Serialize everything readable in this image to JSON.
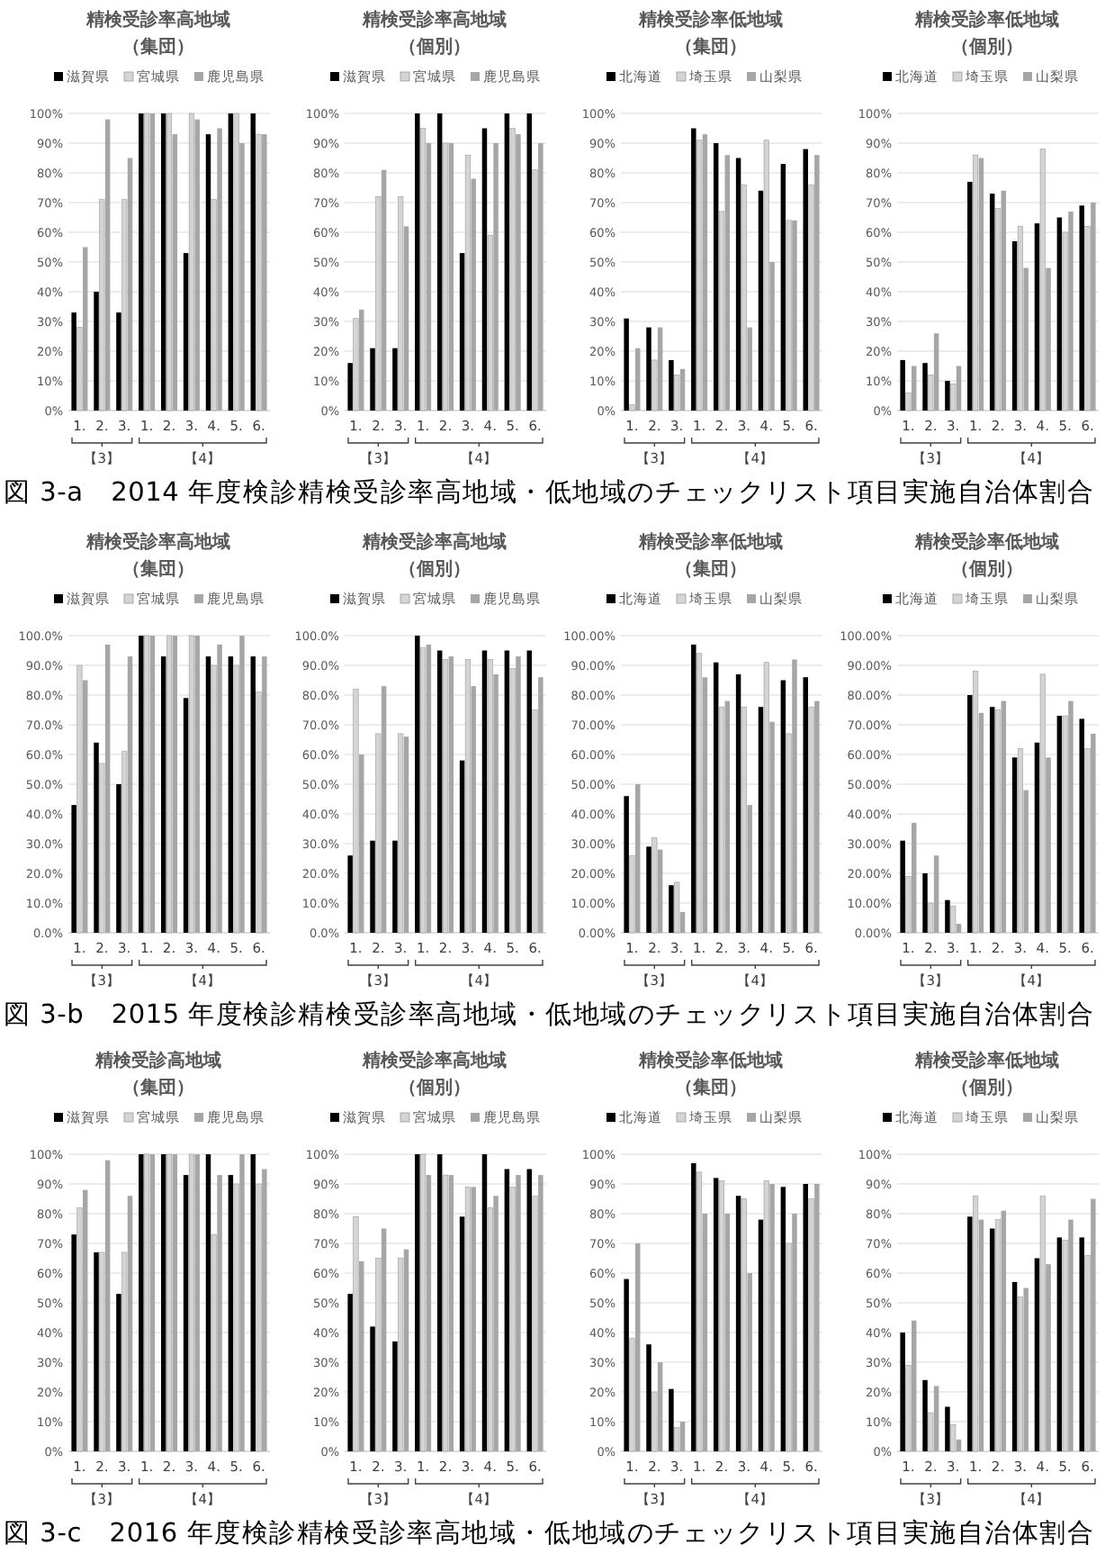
{
  "chart_data": [
    {
      "type": "bar",
      "title": "精検受診率高地域",
      "subtitle": "（集団）",
      "categories": [
        "1.",
        "2.",
        "3.",
        "1.",
        "2.",
        "3.",
        "4.",
        "5.",
        "6."
      ],
      "ylim": [
        0,
        100
      ],
      "yticks": [
        {
          "value": 0,
          "label": "0%"
        },
        {
          "value": 10,
          "label": "10%"
        },
        {
          "value": 20,
          "label": "20%"
        },
        {
          "value": 30,
          "label": "30%"
        },
        {
          "value": 40,
          "label": "40%"
        },
        {
          "value": 50,
          "label": "50%"
        },
        {
          "value": 60,
          "label": "60%"
        },
        {
          "value": 70,
          "label": "70%"
        },
        {
          "value": 80,
          "label": "80%"
        },
        {
          "value": 90,
          "label": "90%"
        },
        {
          "value": 100,
          "label": "100%"
        }
      ],
      "grid": "y",
      "legend": "top",
      "annotations": [
        "【3】",
        "【4】",
        "図 3-a　2014 年度検診精検受診率高地域・低地域のチェックリスト項目実施自治体割合"
      ],
      "series": [
        {
          "name": "滋賀県",
          "color": "#000000",
          "values": [
            33,
            40,
            33,
            100,
            100,
            53,
            93,
            100,
            100
          ]
        },
        {
          "name": "宮城県",
          "color": "#d4d4d4",
          "values": [
            28,
            71,
            71,
            100,
            100,
            100,
            71,
            100,
            93
          ]
        },
        {
          "name": "鹿児島県",
          "color": "#a6a6a6",
          "values": [
            55,
            98,
            85,
            100,
            93,
            98,
            95,
            90,
            93
          ]
        }
      ]
    },
    {
      "type": "bar",
      "title": "精検受診率高地域",
      "subtitle": "（個別）",
      "categories": [
        "1.",
        "2.",
        "3.",
        "1.",
        "2.",
        "3.",
        "4.",
        "5.",
        "6."
      ],
      "ylim": [
        0,
        100
      ],
      "yticks": [
        {
          "value": 0,
          "label": "0%"
        },
        {
          "value": 10,
          "label": "10%"
        },
        {
          "value": 20,
          "label": "20%"
        },
        {
          "value": 30,
          "label": "30%"
        },
        {
          "value": 40,
          "label": "40%"
        },
        {
          "value": 50,
          "label": "50%"
        },
        {
          "value": 60,
          "label": "60%"
        },
        {
          "value": 70,
          "label": "70%"
        },
        {
          "value": 80,
          "label": "80%"
        },
        {
          "value": 90,
          "label": "90%"
        },
        {
          "value": 100,
          "label": "100%"
        }
      ],
      "grid": "y",
      "legend": "top",
      "annotations": [
        "【3】",
        "【4】"
      ],
      "series": [
        {
          "name": "滋賀県",
          "color": "#000000",
          "values": [
            16,
            21,
            21,
            100,
            100,
            53,
            95,
            100,
            100
          ]
        },
        {
          "name": "宮城県",
          "color": "#d4d4d4",
          "values": [
            31,
            72,
            72,
            95,
            90,
            86,
            59,
            95,
            81
          ]
        },
        {
          "name": "鹿児島県",
          "color": "#a6a6a6",
          "values": [
            34,
            81,
            62,
            90,
            90,
            78,
            90,
            93,
            90
          ]
        }
      ]
    },
    {
      "type": "bar",
      "title": "精検受診率低地域",
      "subtitle": "（集団）",
      "categories": [
        "1.",
        "2.",
        "3.",
        "1.",
        "2.",
        "3.",
        "4.",
        "5.",
        "6."
      ],
      "ylim": [
        0,
        100
      ],
      "yticks": [
        {
          "value": 0,
          "label": "0%"
        },
        {
          "value": 10,
          "label": "10%"
        },
        {
          "value": 20,
          "label": "20%"
        },
        {
          "value": 30,
          "label": "30%"
        },
        {
          "value": 40,
          "label": "40%"
        },
        {
          "value": 50,
          "label": "50%"
        },
        {
          "value": 60,
          "label": "60%"
        },
        {
          "value": 70,
          "label": "70%"
        },
        {
          "value": 80,
          "label": "80%"
        },
        {
          "value": 90,
          "label": "90%"
        },
        {
          "value": 100,
          "label": "100%"
        }
      ],
      "grid": "y",
      "legend": "top",
      "annotations": [
        "【3】",
        "【4】"
      ],
      "series": [
        {
          "name": "北海道",
          "color": "#000000",
          "values": [
            31,
            28,
            17,
            95,
            90,
            85,
            74,
            83,
            88
          ]
        },
        {
          "name": "埼玉県",
          "color": "#d4d4d4",
          "values": [
            2,
            17,
            12,
            91,
            67,
            76,
            91,
            64,
            76
          ]
        },
        {
          "name": "山梨県",
          "color": "#a6a6a6",
          "values": [
            21,
            28,
            14,
            93,
            86,
            28,
            50,
            64,
            86
          ]
        }
      ]
    },
    {
      "type": "bar",
      "title": "精検受診率低地域",
      "subtitle": "（個別）",
      "categories": [
        "1.",
        "2.",
        "3.",
        "1.",
        "2.",
        "3.",
        "4.",
        "5.",
        "6."
      ],
      "ylim": [
        0,
        100
      ],
      "yticks": [
        {
          "value": 0,
          "label": "0%"
        },
        {
          "value": 10,
          "label": "10%"
        },
        {
          "value": 20,
          "label": "20%"
        },
        {
          "value": 30,
          "label": "30%"
        },
        {
          "value": 40,
          "label": "40%"
        },
        {
          "value": 50,
          "label": "50%"
        },
        {
          "value": 60,
          "label": "60%"
        },
        {
          "value": 70,
          "label": "70%"
        },
        {
          "value": 80,
          "label": "80%"
        },
        {
          "value": 90,
          "label": "90%"
        },
        {
          "value": 100,
          "label": "100%"
        }
      ],
      "grid": "y",
      "legend": "top",
      "annotations": [
        "【3】",
        "【4】"
      ],
      "series": [
        {
          "name": "北海道",
          "color": "#000000",
          "values": [
            17,
            16,
            10,
            77,
            73,
            57,
            63,
            65,
            69
          ]
        },
        {
          "name": "埼玉県",
          "color": "#d4d4d4",
          "values": [
            6,
            12,
            9,
            86,
            68,
            62,
            88,
            60,
            62
          ]
        },
        {
          "name": "山梨県",
          "color": "#a6a6a6",
          "values": [
            15,
            26,
            15,
            85,
            74,
            48,
            48,
            67,
            70
          ]
        }
      ]
    },
    {
      "type": "bar",
      "title": "精検受診率高地域",
      "subtitle": "（集団）",
      "categories": [
        "1.",
        "2.",
        "3.",
        "1.",
        "2.",
        "3.",
        "4.",
        "5.",
        "6."
      ],
      "ylim": [
        0,
        100
      ],
      "yticks": [
        {
          "value": 0,
          "label": "0.0%"
        },
        {
          "value": 10,
          "label": "10.0%"
        },
        {
          "value": 20,
          "label": "20.0%"
        },
        {
          "value": 30,
          "label": "30.0%"
        },
        {
          "value": 40,
          "label": "40.0%"
        },
        {
          "value": 50,
          "label": "50.0%"
        },
        {
          "value": 60,
          "label": "60.0%"
        },
        {
          "value": 70,
          "label": "70.0%"
        },
        {
          "value": 80,
          "label": "80.0%"
        },
        {
          "value": 90,
          "label": "90.0%"
        },
        {
          "value": 100,
          "label": "100.0%"
        }
      ],
      "grid": "y",
      "legend": "top",
      "annotations": [
        "【3】",
        "【4】",
        "図 3-b　2015 年度検診精検受診率高地域・低地域のチェックリスト項目実施自治体割合"
      ],
      "series": [
        {
          "name": "滋賀県",
          "color": "#000000",
          "values": [
            43,
            64,
            50,
            100,
            93,
            79,
            93,
            93,
            93
          ]
        },
        {
          "name": "宮城県",
          "color": "#d4d4d4",
          "values": [
            90,
            57,
            61,
            100,
            100,
            100,
            90,
            90,
            81
          ]
        },
        {
          "name": "鹿児島県",
          "color": "#a6a6a6",
          "values": [
            85,
            97,
            93,
            100,
            100,
            100,
            97,
            100,
            93
          ]
        }
      ]
    },
    {
      "type": "bar",
      "title": "精検受診率高地域",
      "subtitle": "（個別）",
      "categories": [
        "1.",
        "2.",
        "3.",
        "1.",
        "2.",
        "3.",
        "4.",
        "5.",
        "6."
      ],
      "ylim": [
        0,
        100
      ],
      "yticks": [
        {
          "value": 0,
          "label": "0.0%"
        },
        {
          "value": 10,
          "label": "10.0%"
        },
        {
          "value": 20,
          "label": "20.0%"
        },
        {
          "value": 30,
          "label": "30.0%"
        },
        {
          "value": 40,
          "label": "40.0%"
        },
        {
          "value": 50,
          "label": "50.0%"
        },
        {
          "value": 60,
          "label": "60.0%"
        },
        {
          "value": 70,
          "label": "70.0%"
        },
        {
          "value": 80,
          "label": "80.0%"
        },
        {
          "value": 90,
          "label": "90.0%"
        },
        {
          "value": 100,
          "label": "100.0%"
        }
      ],
      "grid": "y",
      "legend": "top",
      "annotations": [
        "【3】",
        "【4】"
      ],
      "series": [
        {
          "name": "滋賀県",
          "color": "#000000",
          "values": [
            26,
            31,
            31,
            100,
            95,
            58,
            95,
            95,
            95
          ]
        },
        {
          "name": "宮城県",
          "color": "#d4d4d4",
          "values": [
            82,
            67,
            67,
            96,
            92,
            92,
            92,
            89,
            75
          ]
        },
        {
          "name": "鹿児島県",
          "color": "#a6a6a6",
          "values": [
            60,
            83,
            66,
            97,
            93,
            83,
            87,
            93,
            86
          ]
        }
      ]
    },
    {
      "type": "bar",
      "title": "精検受診率低地域",
      "subtitle": "（集団）",
      "categories": [
        "1.",
        "2.",
        "3.",
        "1.",
        "2.",
        "3.",
        "4.",
        "5.",
        "6."
      ],
      "ylim": [
        0,
        100
      ],
      "yticks": [
        {
          "value": 0,
          "label": "0.00%"
        },
        {
          "value": 10,
          "label": "10.00%"
        },
        {
          "value": 20,
          "label": "20.00%"
        },
        {
          "value": 30,
          "label": "30.00%"
        },
        {
          "value": 40,
          "label": "40.00%"
        },
        {
          "value": 50,
          "label": "50.00%"
        },
        {
          "value": 60,
          "label": "60.00%"
        },
        {
          "value": 70,
          "label": "70.00%"
        },
        {
          "value": 80,
          "label": "80.00%"
        },
        {
          "value": 90,
          "label": "90.00%"
        },
        {
          "value": 100,
          "label": "100.00%"
        }
      ],
      "grid": "y",
      "legend": "top",
      "annotations": [
        "【3】",
        "【4】"
      ],
      "series": [
        {
          "name": "北海道",
          "color": "#000000",
          "values": [
            46,
            29,
            16,
            97,
            91,
            87,
            76,
            85,
            86
          ]
        },
        {
          "name": "埼玉県",
          "color": "#d4d4d4",
          "values": [
            26,
            32,
            17,
            94,
            76,
            76,
            91,
            67,
            76
          ]
        },
        {
          "name": "山梨県",
          "color": "#a6a6a6",
          "values": [
            50,
            28,
            7,
            86,
            78,
            43,
            71,
            92,
            78
          ]
        }
      ]
    },
    {
      "type": "bar",
      "title": "精検受診率低地域",
      "subtitle": "（個別）",
      "categories": [
        "1.",
        "2.",
        "3.",
        "1.",
        "2.",
        "3.",
        "4.",
        "5.",
        "6."
      ],
      "ylim": [
        0,
        100
      ],
      "yticks": [
        {
          "value": 0,
          "label": "0.00%"
        },
        {
          "value": 10,
          "label": "10.00%"
        },
        {
          "value": 20,
          "label": "20.00%"
        },
        {
          "value": 30,
          "label": "30.00%"
        },
        {
          "value": 40,
          "label": "40.00%"
        },
        {
          "value": 50,
          "label": "50.00%"
        },
        {
          "value": 60,
          "label": "60.00%"
        },
        {
          "value": 70,
          "label": "70.00%"
        },
        {
          "value": 80,
          "label": "80.00%"
        },
        {
          "value": 90,
          "label": "90.00%"
        },
        {
          "value": 100,
          "label": "100.00%"
        }
      ],
      "grid": "y",
      "legend": "top",
      "annotations": [
        "【3】",
        "【4】"
      ],
      "series": [
        {
          "name": "北海道",
          "color": "#000000",
          "values": [
            31,
            20,
            11,
            80,
            76,
            59,
            64,
            73,
            72
          ]
        },
        {
          "name": "埼玉県",
          "color": "#d4d4d4",
          "values": [
            19,
            10,
            9,
            88,
            75,
            62,
            87,
            73,
            62
          ]
        },
        {
          "name": "山梨県",
          "color": "#a6a6a6",
          "values": [
            37,
            26,
            3,
            74,
            78,
            48,
            59,
            78,
            67
          ]
        }
      ]
    },
    {
      "type": "bar",
      "title": "精検受診高地域",
      "subtitle": "（集団）",
      "categories": [
        "1.",
        "2.",
        "3.",
        "1.",
        "2.",
        "3.",
        "4.",
        "5.",
        "6."
      ],
      "ylim": [
        0,
        100
      ],
      "yticks": [
        {
          "value": 0,
          "label": "0%"
        },
        {
          "value": 10,
          "label": "10%"
        },
        {
          "value": 20,
          "label": "20%"
        },
        {
          "value": 30,
          "label": "30%"
        },
        {
          "value": 40,
          "label": "40%"
        },
        {
          "value": 50,
          "label": "50%"
        },
        {
          "value": 60,
          "label": "60%"
        },
        {
          "value": 70,
          "label": "70%"
        },
        {
          "value": 80,
          "label": "80%"
        },
        {
          "value": 90,
          "label": "90%"
        },
        {
          "value": 100,
          "label": "100%"
        }
      ],
      "grid": "y",
      "legend": "top",
      "annotations": [
        "【3】",
        "【4】",
        "図 3-c　2016 年度検診精検受診率高地域・低地域のチェックリスト項目実施自治体割合"
      ],
      "series": [
        {
          "name": "滋賀県",
          "color": "#000000",
          "values": [
            73,
            67,
            53,
            100,
            100,
            93,
            100,
            93,
            100
          ]
        },
        {
          "name": "宮城県",
          "color": "#d4d4d4",
          "values": [
            82,
            67,
            67,
            100,
            100,
            100,
            73,
            90,
            90
          ]
        },
        {
          "name": "鹿児島県",
          "color": "#a6a6a6",
          "values": [
            88,
            98,
            86,
            100,
            100,
            100,
            93,
            100,
            95
          ]
        }
      ]
    },
    {
      "type": "bar",
      "title": "精検受診率高地域",
      "subtitle": "（個別）",
      "categories": [
        "1.",
        "2.",
        "3.",
        "1.",
        "2.",
        "3.",
        "4.",
        "5.",
        "6."
      ],
      "ylim": [
        0,
        100
      ],
      "yticks": [
        {
          "value": 0,
          "label": "0%"
        },
        {
          "value": 10,
          "label": "10%"
        },
        {
          "value": 20,
          "label": "20%"
        },
        {
          "value": 30,
          "label": "30%"
        },
        {
          "value": 40,
          "label": "40%"
        },
        {
          "value": 50,
          "label": "50%"
        },
        {
          "value": 60,
          "label": "60%"
        },
        {
          "value": 70,
          "label": "70%"
        },
        {
          "value": 80,
          "label": "80%"
        },
        {
          "value": 90,
          "label": "90%"
        },
        {
          "value": 100,
          "label": "100%"
        }
      ],
      "grid": "y",
      "legend": "top",
      "annotations": [
        "【3】",
        "【4】"
      ],
      "series": [
        {
          "name": "滋賀県",
          "color": "#000000",
          "values": [
            53,
            42,
            37,
            100,
            100,
            79,
            100,
            95,
            95
          ]
        },
        {
          "name": "宮城県",
          "color": "#d4d4d4",
          "values": [
            79,
            65,
            65,
            100,
            93,
            89,
            82,
            89,
            86
          ]
        },
        {
          "name": "鹿児島県",
          "color": "#a6a6a6",
          "values": [
            64,
            75,
            68,
            93,
            93,
            89,
            86,
            93,
            93
          ]
        }
      ]
    },
    {
      "type": "bar",
      "title": "精検受診率低地域",
      "subtitle": "（集団）",
      "categories": [
        "1.",
        "2.",
        "3.",
        "1.",
        "2.",
        "3.",
        "4.",
        "5.",
        "6."
      ],
      "ylim": [
        0,
        100
      ],
      "yticks": [
        {
          "value": 0,
          "label": "0%"
        },
        {
          "value": 10,
          "label": "10%"
        },
        {
          "value": 20,
          "label": "20%"
        },
        {
          "value": 30,
          "label": "30%"
        },
        {
          "value": 40,
          "label": "40%"
        },
        {
          "value": 50,
          "label": "50%"
        },
        {
          "value": 60,
          "label": "60%"
        },
        {
          "value": 70,
          "label": "70%"
        },
        {
          "value": 80,
          "label": "80%"
        },
        {
          "value": 90,
          "label": "90%"
        },
        {
          "value": 100,
          "label": "100%"
        }
      ],
      "grid": "y",
      "legend": "top",
      "annotations": [
        "【3】",
        "【4】"
      ],
      "series": [
        {
          "name": "北海道",
          "color": "#000000",
          "values": [
            58,
            36,
            21,
            97,
            92,
            86,
            78,
            89,
            90
          ]
        },
        {
          "name": "埼玉県",
          "color": "#d4d4d4",
          "values": [
            38,
            20,
            8,
            94,
            91,
            85,
            91,
            70,
            85
          ]
        },
        {
          "name": "山梨県",
          "color": "#a6a6a6",
          "values": [
            70,
            30,
            10,
            80,
            80,
            60,
            90,
            80,
            90
          ]
        }
      ]
    },
    {
      "type": "bar",
      "title": "精検受診率低地域",
      "subtitle": "（個別）",
      "categories": [
        "1.",
        "2.",
        "3.",
        "1.",
        "2.",
        "3.",
        "4.",
        "5.",
        "6."
      ],
      "ylim": [
        0,
        100
      ],
      "yticks": [
        {
          "value": 0,
          "label": "0%"
        },
        {
          "value": 10,
          "label": "10%"
        },
        {
          "value": 20,
          "label": "20%"
        },
        {
          "value": 30,
          "label": "30%"
        },
        {
          "value": 40,
          "label": "40%"
        },
        {
          "value": 50,
          "label": "50%"
        },
        {
          "value": 60,
          "label": "60%"
        },
        {
          "value": 70,
          "label": "70%"
        },
        {
          "value": 80,
          "label": "80%"
        },
        {
          "value": 90,
          "label": "90%"
        },
        {
          "value": 100,
          "label": "100%"
        }
      ],
      "grid": "y",
      "legend": "top",
      "annotations": [
        "【3】",
        "【4】"
      ],
      "series": [
        {
          "name": "北海道",
          "color": "#000000",
          "values": [
            40,
            24,
            15,
            79,
            75,
            57,
            65,
            72,
            72
          ]
        },
        {
          "name": "埼玉県",
          "color": "#d4d4d4",
          "values": [
            29,
            13,
            9,
            86,
            78,
            52,
            86,
            71,
            66
          ]
        },
        {
          "name": "山梨県",
          "color": "#a6a6a6",
          "values": [
            44,
            22,
            4,
            78,
            81,
            55,
            63,
            78,
            85
          ]
        }
      ]
    }
  ]
}
